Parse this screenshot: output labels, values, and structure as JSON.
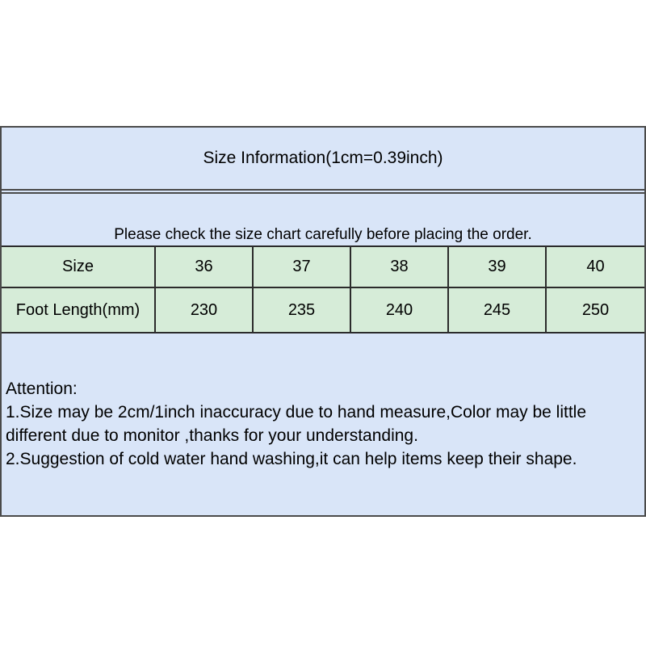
{
  "panel": {
    "title": "Size Information(1cm=0.39inch)",
    "notice": "Please check the size chart carefully before placing the order.",
    "colors": {
      "band_blue": "#d9e5f8",
      "table_green": "#d6ecd8",
      "panel_border": "#4a4a4a",
      "table_border": "#2b2b2b",
      "text": "#000000",
      "page_background": "#ffffff"
    }
  },
  "size_table": {
    "type": "table",
    "rows": [
      {
        "header": "Size",
        "values": [
          "36",
          "37",
          "38",
          "39",
          "40"
        ]
      },
      {
        "header": "Foot Length(mm)",
        "values": [
          "230",
          "235",
          "240",
          "245",
          "250"
        ]
      }
    ]
  },
  "attention": {
    "heading": "Attention:",
    "lines": [
      "1.Size may be 2cm/1inch inaccuracy due to hand measure,Color may be little different due to monitor ,thanks for your understanding.",
      "2.Suggestion of cold water hand washing,it can help items keep their shape."
    ]
  }
}
